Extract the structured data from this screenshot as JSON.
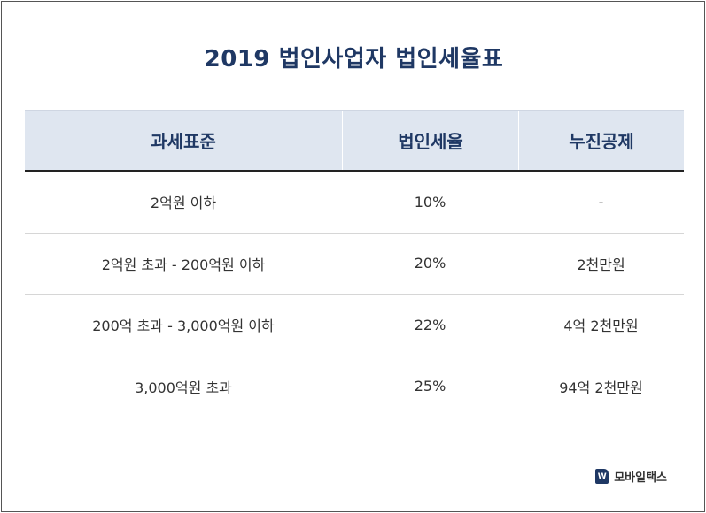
{
  "title": "2019 법인사업자 법인세율표",
  "table": {
    "headers": [
      "과세표준",
      "법인세율",
      "누진공제"
    ],
    "rows": [
      [
        "2억원 이하",
        "10%",
        "-"
      ],
      [
        "2억원 초과 - 200억원 이하",
        "20%",
        "2천만원"
      ],
      [
        "200억 초과 - 3,000억원 이하",
        "22%",
        "4억 2천만원"
      ],
      [
        "3,000억원 초과",
        "25%",
        "94억 2천만원"
      ]
    ]
  },
  "brand": {
    "logo_icon": "w-logo-icon",
    "logo_glyph": "W",
    "name": "모바일택스"
  },
  "colors": {
    "title": "#1f3864",
    "header_bg": "#dfe6f0",
    "header_text": "#1f3864"
  }
}
